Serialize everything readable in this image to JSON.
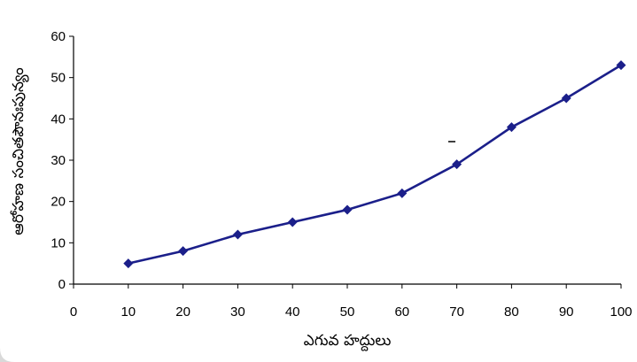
{
  "chart_data": {
    "type": "line",
    "title": "",
    "xlabel": "ఎగువ హద్దులు",
    "ylabel": "ఆరోహణ సంచితపౌనఃపున్యం",
    "xlim": [
      0,
      100
    ],
    "ylim": [
      0,
      60
    ],
    "x_ticks": [
      0,
      10,
      20,
      30,
      40,
      50,
      60,
      70,
      80,
      90,
      100
    ],
    "y_ticks": [
      0,
      10,
      20,
      30,
      40,
      50,
      60
    ],
    "grid": false,
    "legend": "none",
    "marker": "diamond",
    "series_color": "#1b1f8a",
    "series": [
      {
        "x": [
          10,
          20,
          30,
          40,
          50,
          60,
          70,
          80,
          90,
          100
        ],
        "values": [
          5,
          8,
          12,
          15,
          18,
          22,
          29,
          38,
          45,
          53
        ]
      }
    ]
  }
}
